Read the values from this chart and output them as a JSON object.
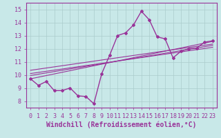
{
  "xlabel": "Windchill (Refroidissement éolien,°C)",
  "xlim": [
    -0.5,
    23.5
  ],
  "ylim": [
    7.5,
    15.5
  ],
  "xticks": [
    0,
    1,
    2,
    3,
    4,
    5,
    6,
    7,
    8,
    9,
    10,
    11,
    12,
    13,
    14,
    15,
    16,
    17,
    18,
    19,
    20,
    21,
    22,
    23
  ],
  "yticks": [
    8,
    9,
    10,
    11,
    12,
    13,
    14,
    15
  ],
  "main_x": [
    0,
    1,
    2,
    3,
    4,
    5,
    6,
    7,
    8,
    9,
    10,
    11,
    12,
    13,
    14,
    15,
    16,
    17,
    18,
    19,
    20,
    21,
    22,
    23
  ],
  "main_y": [
    9.7,
    9.2,
    9.5,
    8.8,
    8.8,
    9.0,
    8.4,
    8.35,
    7.8,
    10.1,
    11.5,
    13.0,
    13.2,
    13.8,
    14.85,
    14.2,
    12.9,
    12.75,
    11.3,
    11.8,
    12.0,
    12.05,
    12.5,
    12.6
  ],
  "trend_lines": [
    {
      "x0": 0,
      "y0": 9.7,
      "x1": 23,
      "y1": 12.55
    },
    {
      "x0": 0,
      "y0": 9.95,
      "x1": 23,
      "y1": 12.25
    },
    {
      "x0": 0,
      "y0": 10.1,
      "x1": 23,
      "y1": 12.1
    },
    {
      "x0": 0,
      "y0": 10.35,
      "x1": 23,
      "y1": 12.35
    }
  ],
  "line_color": "#993399",
  "bg_color": "#c8e8e8",
  "grid_color": "#aacccc",
  "tick_fontsize": 6,
  "label_fontsize": 7
}
